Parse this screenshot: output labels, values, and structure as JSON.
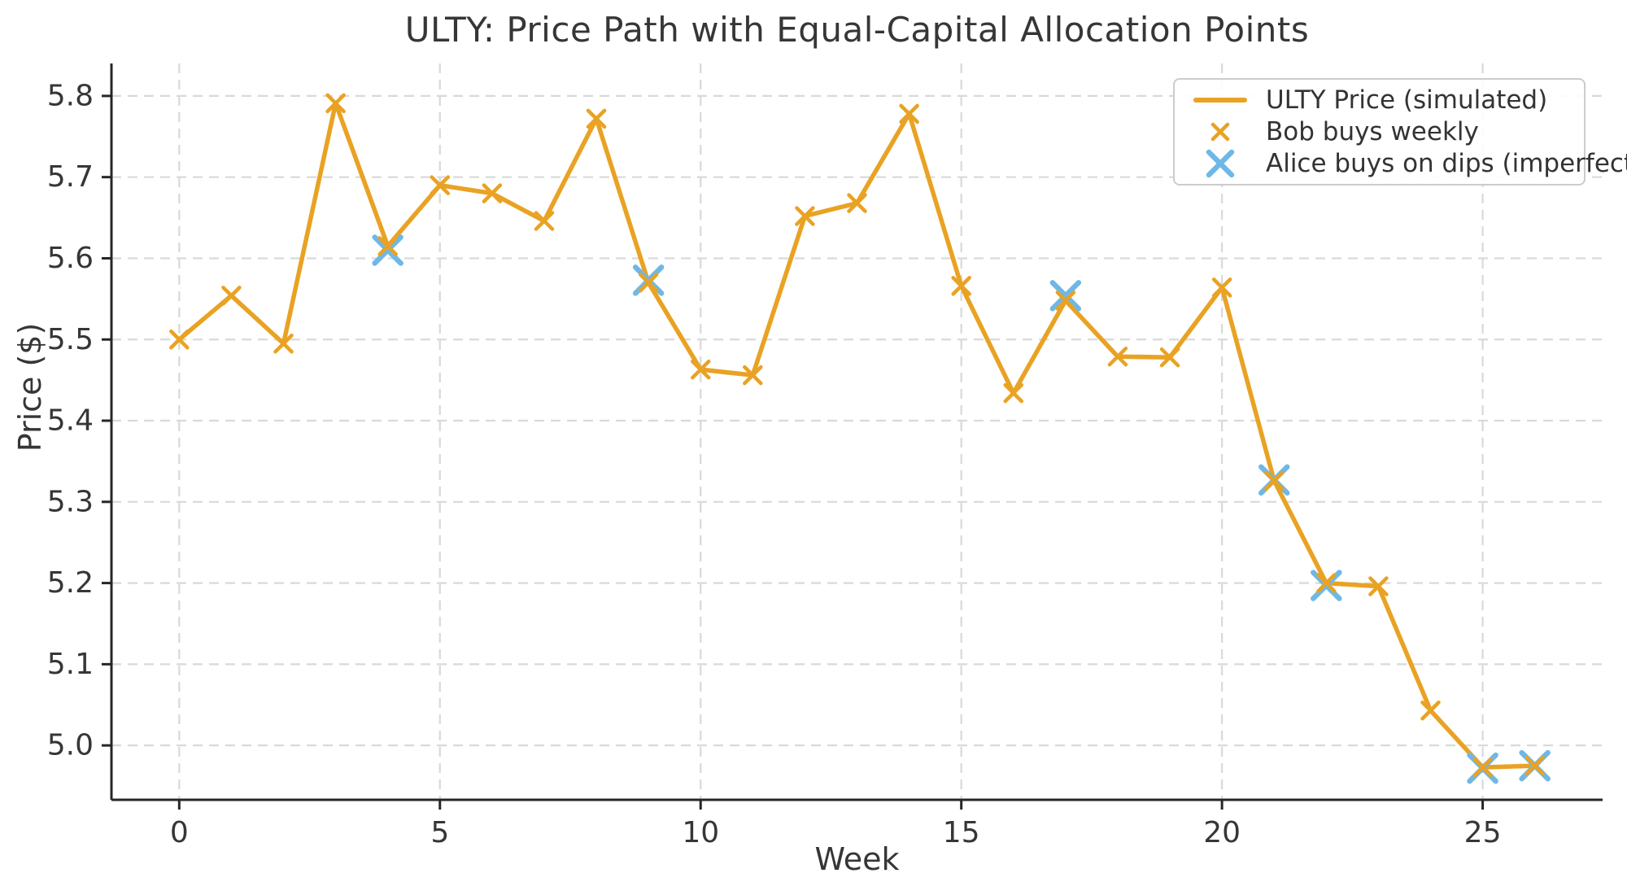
{
  "title": "ULTY: Price Path with Equal-Capital Allocation Points",
  "colors": {
    "price_line": "#E9A223",
    "bob_marker": "#E9A223",
    "alice_marker": "#6FB8E6",
    "grid": "#D9D9D9",
    "axis": "#262626",
    "text": "#363636",
    "legend_border": "#CCCCCC"
  },
  "chart_data": {
    "type": "line",
    "title": "ULTY: Price Path with Equal-Capital Allocation Points",
    "xlabel": "Week",
    "ylabel": "Price ($)",
    "xlim": [
      -1.3,
      27.3
    ],
    "ylim": [
      4.933,
      5.84
    ],
    "xticks": [
      0,
      5,
      10,
      15,
      20,
      25
    ],
    "yticks": [
      5.0,
      5.1,
      5.2,
      5.3,
      5.4,
      5.5,
      5.6,
      5.7,
      5.8
    ],
    "grid": true,
    "legend_position": "upper right",
    "series": [
      {
        "name": "ULTY Price (simulated)",
        "type": "line",
        "marker": "x",
        "x": [
          0,
          1,
          2,
          3,
          4,
          5,
          6,
          7,
          8,
          9,
          10,
          11,
          12,
          13,
          14,
          15,
          16,
          17,
          18,
          19,
          20,
          21,
          22,
          23,
          24,
          25,
          26
        ],
        "y": [
          5.5,
          5.554,
          5.495,
          5.791,
          5.615,
          5.69,
          5.68,
          5.646,
          5.772,
          5.57,
          5.463,
          5.456,
          5.652,
          5.668,
          5.778,
          5.566,
          5.434,
          5.548,
          5.479,
          5.478,
          5.564,
          5.326,
          5.2,
          5.196,
          5.043,
          4.973,
          4.975
        ]
      },
      {
        "name": "Bob buys weekly",
        "type": "scatter",
        "marker": "x",
        "x": [
          0,
          1,
          2,
          3,
          4,
          5,
          6,
          7,
          8,
          9,
          10,
          11,
          12,
          13,
          14,
          15,
          16,
          17,
          18,
          19,
          20,
          21,
          22,
          23,
          24,
          25,
          26
        ],
        "y": [
          5.5,
          5.554,
          5.495,
          5.791,
          5.615,
          5.69,
          5.68,
          5.646,
          5.772,
          5.57,
          5.463,
          5.456,
          5.652,
          5.668,
          5.778,
          5.566,
          5.434,
          5.548,
          5.479,
          5.478,
          5.564,
          5.326,
          5.2,
          5.196,
          5.043,
          4.973,
          4.975
        ]
      },
      {
        "name": "Alice buys on dips (imperfect)",
        "type": "scatter",
        "marker": "X",
        "x": [
          4,
          9,
          17,
          21,
          22,
          25,
          26
        ],
        "y": [
          5.61,
          5.573,
          5.554,
          5.327,
          5.197,
          4.972,
          4.975
        ]
      }
    ]
  }
}
